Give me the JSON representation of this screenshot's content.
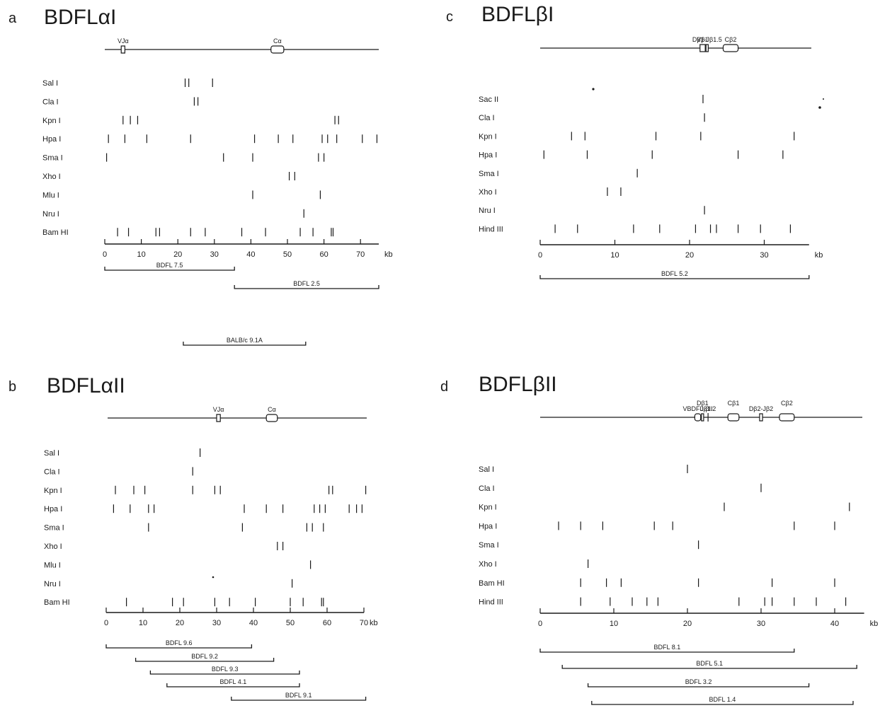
{
  "panels": [
    {
      "id": "a",
      "letter": "a",
      "title": "BDFLαI",
      "axis": {
        "min": 0,
        "max": 75,
        "ticks": [
          0,
          10,
          20,
          30,
          40,
          50,
          60,
          70
        ],
        "unit": "kb"
      },
      "gene_map": {
        "start": 0,
        "end": 75,
        "elements": [
          {
            "label": "VJα",
            "type": "box",
            "start": 4.5,
            "end": 5.5
          },
          {
            "label": "Cα",
            "type": "box",
            "start": 45.5,
            "end": 49
          }
        ]
      },
      "enzymes": [
        {
          "name": "Sal I",
          "sites": [
            22,
            23,
            29.5
          ]
        },
        {
          "name": "Cla I",
          "sites": [
            24.5,
            25.5
          ]
        },
        {
          "name": "Kpn I",
          "sites": [
            5,
            7,
            9,
            63,
            64
          ]
        },
        {
          "name": "Hpa I",
          "sites": [
            1,
            5.5,
            11.5,
            23.5,
            41,
            47.5,
            51.5,
            59.5,
            61,
            63.5,
            70.5,
            74.5
          ]
        },
        {
          "name": "Sma I",
          "sites": [
            0.5,
            32.5,
            40.5,
            58.5,
            60
          ]
        },
        {
          "name": "Xho I",
          "sites": [
            50.5,
            52
          ]
        },
        {
          "name": "Mlu I",
          "sites": [
            40.5,
            59
          ]
        },
        {
          "name": "Nru I",
          "sites": [
            54.5
          ]
        },
        {
          "name": "Bam HI",
          "sites": [
            3.5,
            6.5,
            14,
            15,
            23.5,
            27.5,
            37.5,
            44,
            53.5,
            57,
            62,
            62.5
          ]
        }
      ],
      "clones": [
        {
          "name": "BDFL 7.5",
          "start": 0,
          "end": 35.5
        },
        {
          "name": "BDFL 2.5",
          "start": 35.5,
          "end": 75
        },
        {
          "name": "BALB/c 9.1A",
          "start": 21.5,
          "end": 55
        }
      ]
    },
    {
      "id": "b",
      "letter": "b",
      "title": "BDFLαII",
      "axis": {
        "min": 0,
        "max": 70,
        "ticks": [
          0,
          10,
          20,
          30,
          40,
          50,
          60,
          70
        ],
        "unit": "kb"
      },
      "gene_map": {
        "start": 0,
        "end": 70,
        "elements": [
          {
            "label": "VJα",
            "type": "box",
            "start": 30,
            "end": 31
          },
          {
            "label": "Cα",
            "type": "box",
            "start": 43.5,
            "end": 46.5
          }
        ]
      },
      "enzymes": [
        {
          "name": "Sal I",
          "sites": [
            25.5
          ]
        },
        {
          "name": "Cla I",
          "sites": [
            23.5
          ]
        },
        {
          "name": "Kpn I",
          "sites": [
            2.5,
            7.5,
            10.5,
            23.5,
            29.5,
            31,
            60.5,
            61.5,
            70.5
          ]
        },
        {
          "name": "Hpa I",
          "sites": [
            2,
            6.5,
            11.5,
            13,
            37.5,
            43.5,
            48,
            56.5,
            58,
            59.5,
            66,
            68,
            69.5
          ]
        },
        {
          "name": "Sma I",
          "sites": [
            11.5,
            37,
            54.5,
            56,
            59
          ]
        },
        {
          "name": "Xho I",
          "sites": [
            46.5,
            48
          ]
        },
        {
          "name": "Mlu I",
          "sites": [
            55.5
          ]
        },
        {
          "name": "Nru I",
          "sites": [
            50.5
          ]
        },
        {
          "name": "Bam HI",
          "sites": [
            5.5,
            18,
            21,
            29.5,
            33.5,
            40.5,
            50,
            53.5,
            58.5,
            59
          ]
        }
      ],
      "clones": [
        {
          "name": "BDFL 9.6",
          "start": 0,
          "end": 39.5
        },
        {
          "name": "BDFL 9.2",
          "start": 8,
          "end": 45.5
        },
        {
          "name": "BDFL 9.3",
          "start": 12,
          "end": 52.5
        },
        {
          "name": "BDFL 4.1",
          "start": 16.5,
          "end": 52.5
        },
        {
          "name": "BDFL 9.1",
          "start": 34,
          "end": 70.5
        }
      ]
    },
    {
      "id": "c",
      "letter": "c",
      "title": "BDFLβI",
      "axis": {
        "min": 0,
        "max": 36,
        "ticks": [
          0,
          10,
          20,
          30
        ],
        "unit": "kb"
      },
      "gene_map": {
        "start": 0,
        "end": 36,
        "elements": [
          {
            "label": "Vβ1",
            "type": "box",
            "start": 21.4,
            "end": 22.1
          },
          {
            "label": "Dβ1-Jβ1.5",
            "type": "box",
            "start": 22.2,
            "end": 22.5
          },
          {
            "label": "Cβ2",
            "type": "box",
            "start": 24.5,
            "end": 26.5
          }
        ]
      },
      "enzymes": [
        {
          "name": "Sac II",
          "sites": [
            21.8
          ]
        },
        {
          "name": "Cla I",
          "sites": [
            22
          ]
        },
        {
          "name": "Kpn I",
          "sites": [
            4.2,
            6,
            15.5,
            21.5,
            34
          ]
        },
        {
          "name": "Hpa I",
          "sites": [
            0.5,
            6.3,
            15,
            26.5,
            32.5
          ]
        },
        {
          "name": "Sma I",
          "sites": [
            13
          ]
        },
        {
          "name": "Xho I",
          "sites": [
            9,
            10.8
          ]
        },
        {
          "name": "Nru I",
          "sites": [
            22
          ]
        },
        {
          "name": "Hind III",
          "sites": [
            2,
            5,
            12.5,
            16,
            20.8,
            22.8,
            23.6,
            26.5,
            29.5,
            33.5
          ]
        }
      ],
      "clones": [
        {
          "name": "BDFL 5.2",
          "start": 0,
          "end": 36
        }
      ]
    },
    {
      "id": "d",
      "letter": "d",
      "title": "BDFLβII",
      "axis": {
        "min": 0,
        "max": 44,
        "ticks": [
          0,
          10,
          20,
          30,
          40
        ],
        "unit": "kb"
      },
      "gene_map": {
        "start": 0,
        "end": 44,
        "elements": [
          {
            "label": "VBDFL-βII",
            "type": "box",
            "start": 21,
            "end": 21.8
          },
          {
            "label": "Dβ1",
            "type": "box",
            "start": 21.9,
            "end": 22.2
          },
          {
            "label": "Jβ1.2",
            "type": "tick",
            "start": 22.8,
            "end": 22.8
          },
          {
            "label": "Cβ1",
            "type": "box",
            "start": 25.5,
            "end": 27
          },
          {
            "label": "Dβ2-Jβ2",
            "type": "box",
            "start": 29.8,
            "end": 30.2
          },
          {
            "label": "Cβ2",
            "type": "box",
            "start": 32.5,
            "end": 34.5
          }
        ]
      },
      "enzymes": [
        {
          "name": "Sal I",
          "sites": [
            20
          ]
        },
        {
          "name": "Cla I",
          "sites": [
            30
          ]
        },
        {
          "name": "Kpn I",
          "sites": [
            25,
            42
          ]
        },
        {
          "name": "Hpa I",
          "sites": [
            2.5,
            5.5,
            8.5,
            15.5,
            18,
            34.5,
            40
          ]
        },
        {
          "name": "Sma I",
          "sites": [
            21.5
          ]
        },
        {
          "name": "Xho I",
          "sites": [
            6.5
          ]
        },
        {
          "name": "Bam HI",
          "sites": [
            5.5,
            9,
            11,
            21.5,
            31.5,
            40
          ]
        },
        {
          "name": "Hind III",
          "sites": [
            5.5,
            9.5,
            12.5,
            14.5,
            16,
            27,
            30.5,
            31.5,
            34.5,
            37.5,
            41.5
          ]
        }
      ],
      "clones": [
        {
          "name": "BDFL 8.1",
          "start": 0,
          "end": 34.5
        },
        {
          "name": "BDFL 5.1",
          "start": 3,
          "end": 43
        },
        {
          "name": "BDFL 3.2",
          "start": 6.5,
          "end": 36.5
        },
        {
          "name": "BDFL 1.4",
          "start": 7,
          "end": 42.5
        }
      ]
    }
  ]
}
